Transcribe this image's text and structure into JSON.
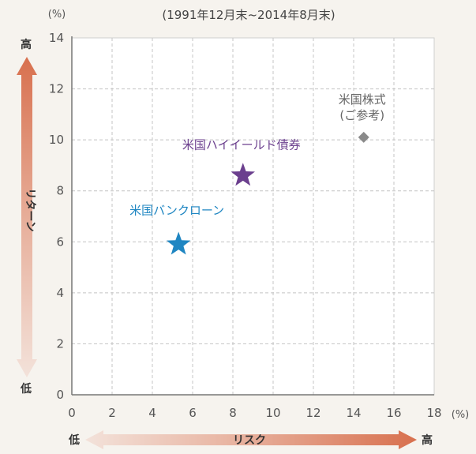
{
  "period": "(1991年12月末~2014年8月末)",
  "y_unit": "(%)",
  "x_unit": "(%)",
  "y_axis": {
    "label": "リターン",
    "high": "高",
    "low": "低"
  },
  "x_axis": {
    "label": "リスク",
    "high": "高",
    "low": "低"
  },
  "colors": {
    "us_bank_loan": "#1f86c2",
    "us_high_yield": "#6b3f8e",
    "us_equity": "#8a8a8a",
    "arrow": "#d87a5a"
  },
  "chart_data": {
    "type": "scatter",
    "xlim": [
      0,
      18
    ],
    "ylim": [
      0,
      14
    ],
    "x_ticks": [
      0,
      2,
      4,
      6,
      8,
      10,
      12,
      14,
      16,
      18
    ],
    "y_ticks": [
      0,
      2,
      4,
      6,
      8,
      10,
      12,
      14
    ],
    "grid": true,
    "points": [
      {
        "label": "米国バンクローン",
        "x": 5.3,
        "y": 5.9,
        "marker": "star",
        "color": "#1f86c2"
      },
      {
        "label": "米国ハイイールド債券",
        "x": 8.5,
        "y": 8.6,
        "marker": "star",
        "color": "#6b3f8e"
      },
      {
        "label": "米国株式",
        "label2": "(ご参考)",
        "x": 14.5,
        "y": 10.1,
        "marker": "diamond",
        "color": "#8a8a8a"
      }
    ]
  }
}
